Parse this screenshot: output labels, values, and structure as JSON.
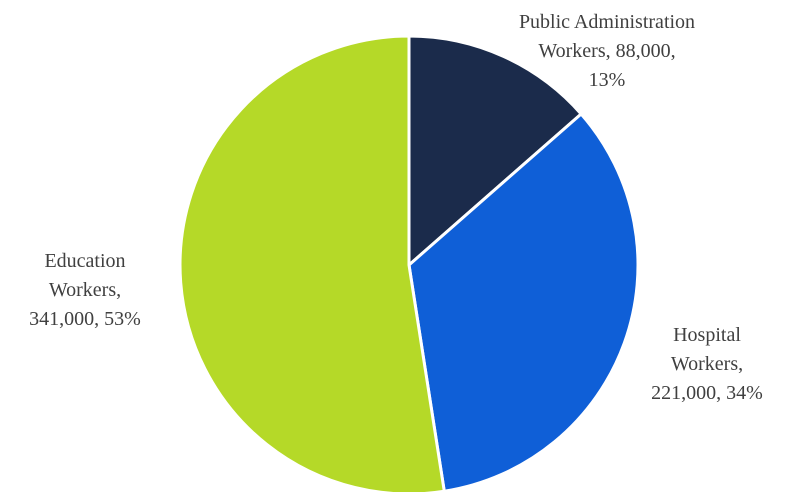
{
  "chart_data": {
    "type": "pie",
    "title": "",
    "categories": [
      "Public Administration Workers",
      "Hospital Workers",
      "Education Workers"
    ],
    "values": [
      88000,
      221000,
      341000
    ],
    "percentages": [
      13,
      34,
      53
    ],
    "colors": [
      "#1b2b4b",
      "#0f5fd7",
      "#b5d928"
    ],
    "legend": "none",
    "start_angle_deg": 0,
    "direction": "clockwise",
    "labels": [
      {
        "slice": "public-administration",
        "lines": [
          "Public Administration",
          "Workers, 88,000,",
          "13%"
        ]
      },
      {
        "slice": "hospital",
        "lines": [
          "Hospital",
          "Workers,",
          "221,000, 34%"
        ]
      },
      {
        "slice": "education",
        "lines": [
          "Education",
          "Workers,",
          "341,000, 53%"
        ]
      }
    ]
  }
}
